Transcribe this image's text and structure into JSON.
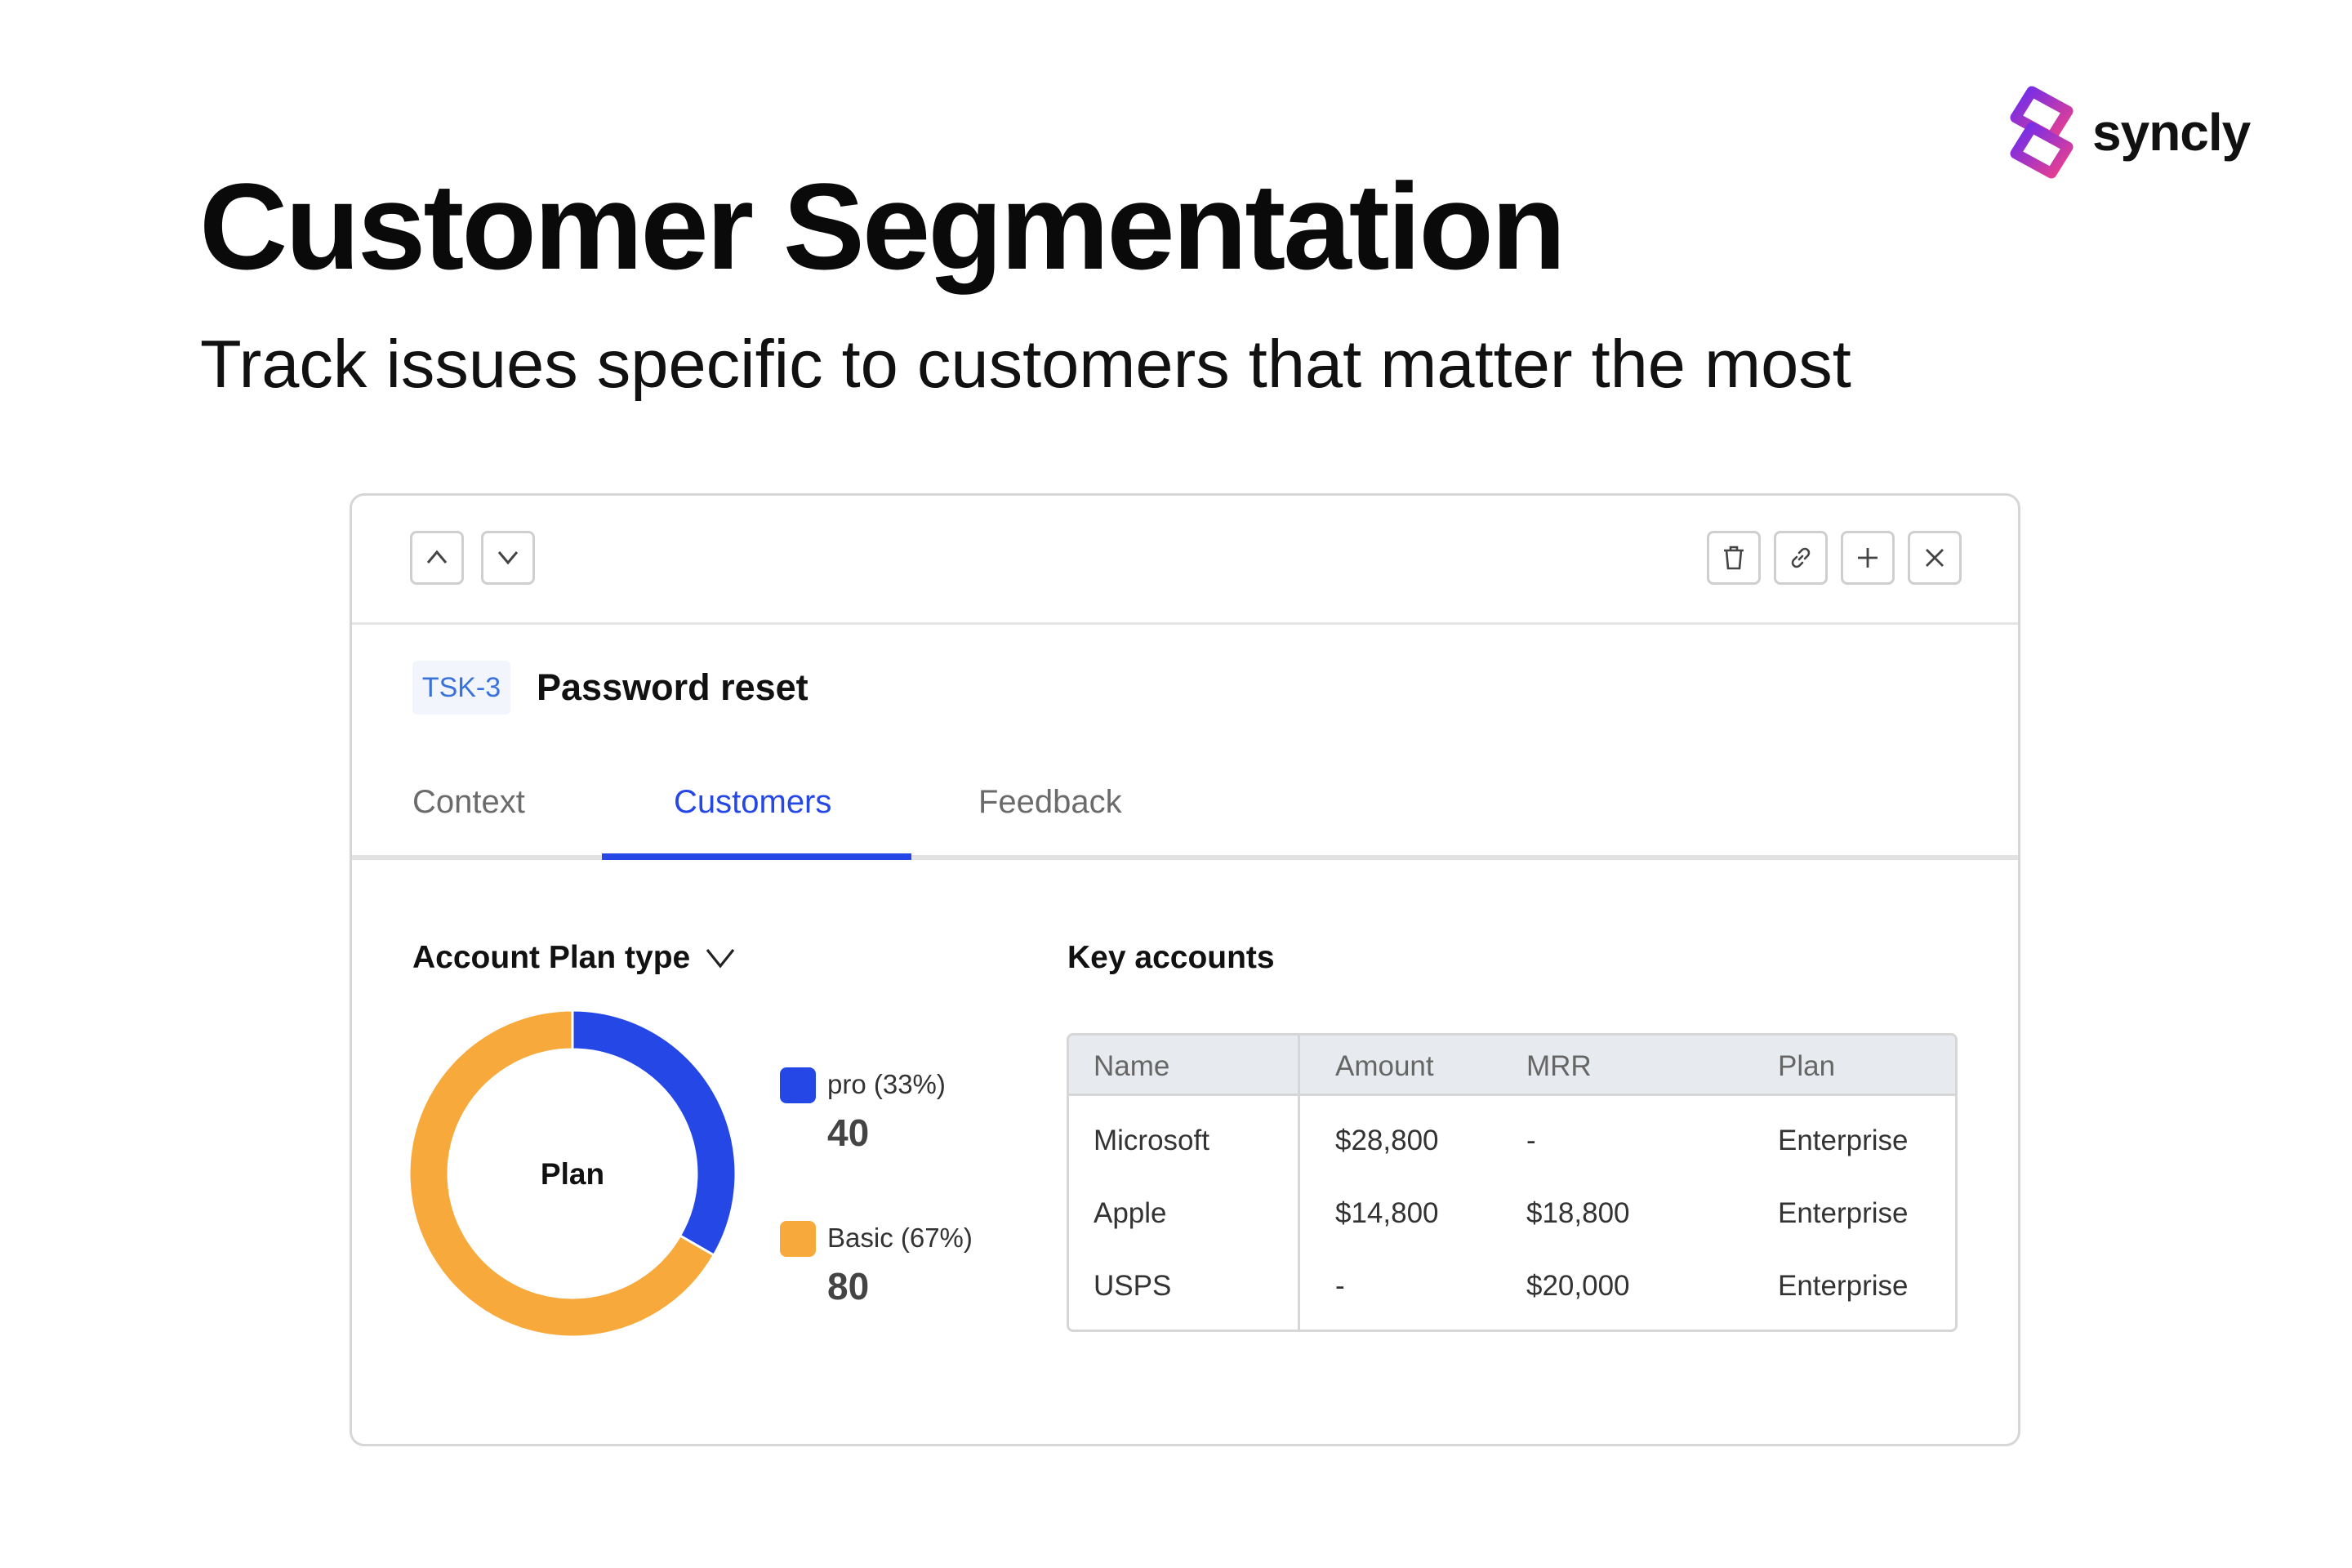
{
  "brand": {
    "name": "syncly"
  },
  "hero": {
    "title": "Customer Segmentation",
    "subtitle": "Track issues specific to customers that matter the most"
  },
  "toolbar": {
    "left_icons": [
      "chevron-up-icon",
      "chevron-down-icon"
    ],
    "right_icons": [
      "trash-icon",
      "link-icon",
      "plus-icon",
      "close-icon"
    ]
  },
  "task": {
    "id": "TSK-3",
    "title": "Password reset"
  },
  "tabs": [
    {
      "label": "Context",
      "active": false
    },
    {
      "label": "Customers",
      "active": true
    },
    {
      "label": "Feedback",
      "active": false
    }
  ],
  "segmentation": {
    "dropdown_label": "Account Plan type",
    "chart_center_label": "Plan",
    "legend": [
      {
        "name": "pro (33%)",
        "value": "40",
        "color": "#2547e6"
      },
      {
        "name": "Basic (67%)",
        "value": "80",
        "color": "#f7a93b"
      }
    ]
  },
  "key_accounts": {
    "title": "Key accounts",
    "columns": [
      "Name",
      "Amount",
      "MRR",
      "Plan"
    ],
    "rows": [
      [
        "Microsoft",
        "$28,800",
        "-",
        "Enterprise"
      ],
      [
        "Apple",
        "$14,800",
        "$18,800",
        "Enterprise"
      ],
      [
        "USPS",
        "-",
        "$20,000",
        "Enterprise"
      ]
    ]
  },
  "chart_data": {
    "type": "pie",
    "categories": [
      "pro",
      "Basic"
    ],
    "values": [
      40,
      80
    ],
    "percentages": [
      33,
      67
    ],
    "colors": [
      "#2547e6",
      "#f7a93b"
    ],
    "title": "",
    "center_label": "Plan"
  }
}
